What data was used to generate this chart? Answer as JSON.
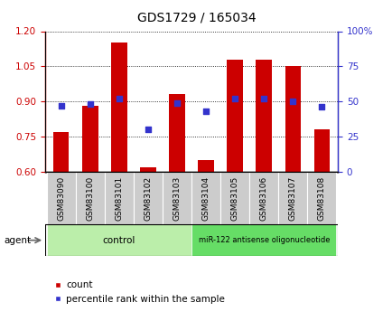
{
  "title": "GDS1729 / 165034",
  "categories": [
    "GSM83090",
    "GSM83100",
    "GSM83101",
    "GSM83102",
    "GSM83103",
    "GSM83104",
    "GSM83105",
    "GSM83106",
    "GSM83107",
    "GSM83108"
  ],
  "red_values": [
    0.77,
    0.88,
    1.15,
    0.62,
    0.93,
    0.65,
    1.08,
    1.08,
    1.05,
    0.78
  ],
  "blue_values": [
    47,
    48,
    52,
    30,
    49,
    43,
    52,
    52,
    50,
    46
  ],
  "red_color": "#cc0000",
  "blue_color": "#3333cc",
  "ylim_left": [
    0.6,
    1.2
  ],
  "ylim_right": [
    0,
    100
  ],
  "yticks_left": [
    0.6,
    0.75,
    0.9,
    1.05,
    1.2
  ],
  "yticks_right": [
    0,
    25,
    50,
    75,
    100
  ],
  "ytick_labels_right": [
    "0",
    "25",
    "50",
    "75",
    "100%"
  ],
  "bar_width": 0.55,
  "control_count": 5,
  "control_label": "control",
  "treatment_label": "miR-122 antisense oligonucleotide",
  "agent_label": "agent",
  "legend_count_label": "count",
  "legend_pct_label": "percentile rank within the sample",
  "title_fontsize": 10,
  "axis_fontsize": 7.5,
  "legend_fontsize": 7.5,
  "cat_fontsize": 6.5,
  "group_fontsize": 7.5
}
